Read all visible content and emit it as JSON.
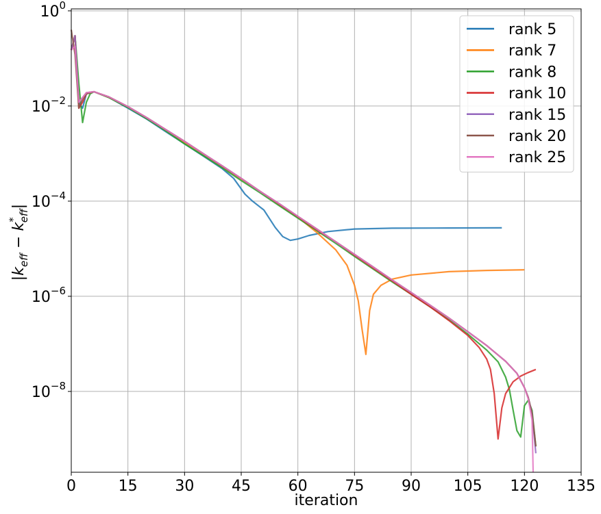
{
  "chart_data": {
    "type": "line",
    "xlabel": "iteration",
    "ylabel": "|k_eff − k*_eff|",
    "xlim": [
      0,
      135
    ],
    "ylim": [
      2e-10,
      1.1
    ],
    "yscale": "log",
    "grid": true,
    "legend_position": "top-right",
    "x_ticks": [
      "0",
      "15",
      "30",
      "45",
      "60",
      "75",
      "90",
      "105",
      "120",
      "135"
    ],
    "y_ticks": [
      {
        "base": "10",
        "exp": "0"
      },
      {
        "base": "10",
        "exp": "−2"
      },
      {
        "base": "10",
        "exp": "−4"
      },
      {
        "base": "10",
        "exp": "−6"
      },
      {
        "base": "10",
        "exp": "−8"
      }
    ],
    "series": [
      {
        "name": "rank 5",
        "color": "#1f77b4",
        "points": [
          [
            0,
            0.15
          ],
          [
            1,
            0.3
          ],
          [
            2,
            0.012
          ],
          [
            3,
            0.009
          ],
          [
            4,
            0.018
          ],
          [
            6,
            0.02
          ],
          [
            10,
            0.015
          ],
          [
            15,
            0.009
          ],
          [
            20,
            0.0053
          ],
          [
            25,
            0.0029
          ],
          [
            30,
            0.0016
          ],
          [
            35,
            0.00088
          ],
          [
            40,
            0.00048
          ],
          [
            43,
            0.0003
          ],
          [
            46,
            0.00014
          ],
          [
            48,
            0.0001
          ],
          [
            51,
            6.5e-05
          ],
          [
            54,
            2.8e-05
          ],
          [
            56,
            1.8e-05
          ],
          [
            58,
            1.5e-05
          ],
          [
            60,
            1.6e-05
          ],
          [
            63,
            1.9e-05
          ],
          [
            68,
            2.3e-05
          ],
          [
            75,
            2.6e-05
          ],
          [
            85,
            2.7e-05
          ],
          [
            100,
            2.73e-05
          ],
          [
            114,
            2.75e-05
          ]
        ]
      },
      {
        "name": "rank 7",
        "color": "#ff7f0e",
        "points": [
          [
            0,
            0.15
          ],
          [
            1,
            0.3
          ],
          [
            2,
            0.012
          ],
          [
            3,
            0.015
          ],
          [
            4,
            0.019
          ],
          [
            6,
            0.02
          ],
          [
            10,
            0.015
          ],
          [
            15,
            0.0095
          ],
          [
            20,
            0.0056
          ],
          [
            25,
            0.0031
          ],
          [
            30,
            0.0017
          ],
          [
            35,
            0.00096
          ],
          [
            40,
            0.00053
          ],
          [
            45,
            0.00029
          ],
          [
            50,
            0.00016
          ],
          [
            55,
            8.5e-05
          ],
          [
            60,
            4.6e-05
          ],
          [
            65,
            2.2e-05
          ],
          [
            70,
            9.5e-06
          ],
          [
            73,
            4.5e-06
          ],
          [
            75,
            1.7e-06
          ],
          [
            76,
            8e-07
          ],
          [
            77,
            2e-07
          ],
          [
            78,
            6e-08
          ],
          [
            79,
            5e-07
          ],
          [
            80,
            1.1e-06
          ],
          [
            82,
            1.7e-06
          ],
          [
            85,
            2.3e-06
          ],
          [
            90,
            2.8e-06
          ],
          [
            100,
            3.3e-06
          ],
          [
            110,
            3.5e-06
          ],
          [
            120,
            3.6e-06
          ]
        ]
      },
      {
        "name": "rank 8",
        "color": "#2ca02c",
        "points": [
          [
            0,
            0.15
          ],
          [
            1,
            0.3
          ],
          [
            2,
            0.03
          ],
          [
            3,
            0.0045
          ],
          [
            4,
            0.012
          ],
          [
            5,
            0.018
          ],
          [
            6,
            0.02
          ],
          [
            10,
            0.015
          ],
          [
            15,
            0.0093
          ],
          [
            20,
            0.0054
          ],
          [
            25,
            0.003
          ],
          [
            30,
            0.0016
          ],
          [
            35,
            0.0009
          ],
          [
            40,
            0.0005
          ],
          [
            45,
            0.00027
          ],
          [
            50,
            0.00015
          ],
          [
            55,
            8.1e-05
          ],
          [
            60,
            4.4e-05
          ],
          [
            65,
            2.4e-05
          ],
          [
            70,
            1.3e-05
          ],
          [
            75,
            6.9e-06
          ],
          [
            80,
            3.7e-06
          ],
          [
            85,
            2e-06
          ],
          [
            90,
            1.1e-06
          ],
          [
            95,
            6e-07
          ],
          [
            100,
            3.2e-07
          ],
          [
            105,
            1.6e-07
          ],
          [
            110,
            7.4e-08
          ],
          [
            113,
            4.2e-08
          ],
          [
            115,
            2e-08
          ],
          [
            116,
            1.1e-08
          ],
          [
            117,
            4e-09
          ],
          [
            118,
            1.5e-09
          ],
          [
            119,
            1.1e-09
          ],
          [
            120,
            5e-09
          ],
          [
            121,
            6.5e-09
          ],
          [
            122,
            4e-09
          ],
          [
            123,
            7e-10
          ]
        ]
      },
      {
        "name": "rank 10",
        "color": "#d62728",
        "points": [
          [
            0,
            0.15
          ],
          [
            1,
            0.3
          ],
          [
            2,
            0.009
          ],
          [
            3,
            0.012
          ],
          [
            4,
            0.018
          ],
          [
            6,
            0.02
          ],
          [
            10,
            0.0155
          ],
          [
            15,
            0.0097
          ],
          [
            20,
            0.0057
          ],
          [
            25,
            0.0032
          ],
          [
            30,
            0.0018
          ],
          [
            35,
            0.00099
          ],
          [
            40,
            0.00054
          ],
          [
            45,
            0.0003
          ],
          [
            50,
            0.00016
          ],
          [
            55,
            8.7e-05
          ],
          [
            60,
            4.7e-05
          ],
          [
            65,
            2.5e-05
          ],
          [
            70,
            1.4e-05
          ],
          [
            75,
            7.3e-06
          ],
          [
            80,
            3.9e-06
          ],
          [
            85,
            2.1e-06
          ],
          [
            90,
            1.1e-06
          ],
          [
            95,
            6e-07
          ],
          [
            100,
            3.1e-07
          ],
          [
            105,
            1.5e-07
          ],
          [
            108,
            8.4e-08
          ],
          [
            110,
            4.8e-08
          ],
          [
            111,
            2.9e-08
          ],
          [
            112,
            9e-09
          ],
          [
            113,
            1e-09
          ],
          [
            114,
            4.5e-09
          ],
          [
            115,
            9e-09
          ],
          [
            117,
            1.6e-08
          ],
          [
            119,
            2.1e-08
          ],
          [
            121,
            2.5e-08
          ],
          [
            123,
            2.9e-08
          ]
        ]
      },
      {
        "name": "rank 15",
        "color": "#9467bd",
        "points": [
          [
            0,
            0.15
          ],
          [
            1,
            0.3
          ],
          [
            2,
            0.012
          ],
          [
            3,
            0.015
          ],
          [
            4,
            0.019
          ],
          [
            6,
            0.02
          ],
          [
            10,
            0.0155
          ],
          [
            15,
            0.0097
          ],
          [
            20,
            0.0057
          ],
          [
            25,
            0.0032
          ],
          [
            30,
            0.0018
          ],
          [
            35,
            0.00099
          ],
          [
            40,
            0.00055
          ],
          [
            45,
            0.0003
          ],
          [
            50,
            0.00016
          ],
          [
            55,
            8.9e-05
          ],
          [
            60,
            4.8e-05
          ],
          [
            65,
            2.6e-05
          ],
          [
            70,
            1.4e-05
          ],
          [
            75,
            7.6e-06
          ],
          [
            80,
            4.1e-06
          ],
          [
            85,
            2.2e-06
          ],
          [
            90,
            1.2e-06
          ],
          [
            95,
            6.5e-07
          ],
          [
            100,
            3.5e-07
          ],
          [
            105,
            1.8e-07
          ],
          [
            110,
            9.2e-08
          ],
          [
            115,
            4.3e-08
          ],
          [
            118,
            2.4e-08
          ],
          [
            120,
            1.2e-08
          ],
          [
            121,
            7.5e-09
          ],
          [
            122,
            3.5e-09
          ],
          [
            123,
            5e-10
          ]
        ]
      },
      {
        "name": "rank 20",
        "color": "#8c564b",
        "points": [
          [
            0,
            0.4
          ],
          [
            1,
            0.12
          ],
          [
            2,
            0.009
          ],
          [
            3,
            0.014
          ],
          [
            4,
            0.018
          ],
          [
            6,
            0.02
          ],
          [
            10,
            0.0155
          ],
          [
            15,
            0.0097
          ],
          [
            20,
            0.0057
          ],
          [
            25,
            0.0032
          ],
          [
            30,
            0.0018
          ],
          [
            35,
            0.00099
          ],
          [
            40,
            0.00055
          ],
          [
            45,
            0.0003
          ],
          [
            50,
            0.00016
          ],
          [
            55,
            8.9e-05
          ],
          [
            60,
            4.8e-05
          ],
          [
            65,
            2.6e-05
          ],
          [
            70,
            1.4e-05
          ],
          [
            75,
            7.6e-06
          ],
          [
            80,
            4.1e-06
          ],
          [
            85,
            2.2e-06
          ],
          [
            90,
            1.2e-06
          ],
          [
            95,
            6.5e-07
          ],
          [
            100,
            3.5e-07
          ],
          [
            105,
            1.8e-07
          ],
          [
            110,
            9.2e-08
          ],
          [
            115,
            4.3e-08
          ],
          [
            118,
            2.4e-08
          ],
          [
            120,
            1.2e-08
          ],
          [
            121,
            7.5e-09
          ],
          [
            122,
            3.5e-09
          ],
          [
            123,
            7e-10
          ]
        ]
      },
      {
        "name": "rank 25",
        "color": "#e377c2",
        "points": [
          [
            0,
            0.15
          ],
          [
            1,
            0.18
          ],
          [
            2,
            0.012
          ],
          [
            3,
            0.015
          ],
          [
            4,
            0.019
          ],
          [
            6,
            0.02
          ],
          [
            10,
            0.0155
          ],
          [
            15,
            0.0097
          ],
          [
            20,
            0.0057
          ],
          [
            25,
            0.0032
          ],
          [
            30,
            0.0018
          ],
          [
            35,
            0.00099
          ],
          [
            40,
            0.00055
          ],
          [
            45,
            0.0003
          ],
          [
            50,
            0.00016
          ],
          [
            55,
            8.9e-05
          ],
          [
            60,
            4.8e-05
          ],
          [
            65,
            2.6e-05
          ],
          [
            70,
            1.4e-05
          ],
          [
            75,
            7.6e-06
          ],
          [
            80,
            4.1e-06
          ],
          [
            85,
            2.2e-06
          ],
          [
            90,
            1.2e-06
          ],
          [
            95,
            6.5e-07
          ],
          [
            100,
            3.5e-07
          ],
          [
            105,
            1.8e-07
          ],
          [
            110,
            9.2e-08
          ],
          [
            115,
            4.3e-08
          ],
          [
            118,
            2.4e-08
          ],
          [
            120,
            1.2e-08
          ],
          [
            121,
            7e-09
          ],
          [
            122,
            2.5e-09
          ],
          [
            122.3,
            2e-10
          ]
        ]
      }
    ]
  }
}
